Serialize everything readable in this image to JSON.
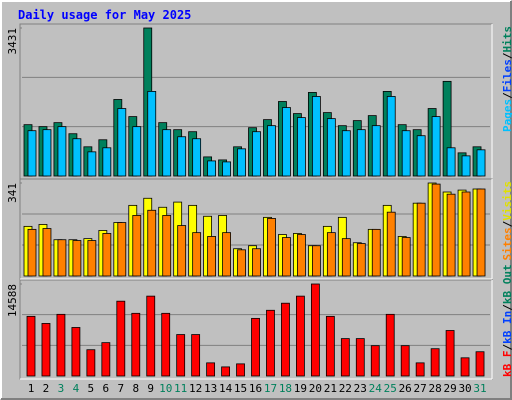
{
  "title": "Daily usage for May 2025",
  "categories": [
    "1",
    "2",
    "3",
    "4",
    "5",
    "6",
    "7",
    "8",
    "9",
    "10",
    "11",
    "12",
    "13",
    "14",
    "15",
    "16",
    "17",
    "18",
    "19",
    "20",
    "21",
    "22",
    "23",
    "24",
    "25",
    "26",
    "27",
    "28",
    "29",
    "30",
    "31"
  ],
  "category_colors": [
    "#000000",
    "#000000",
    "#00805c",
    "#00805c",
    "#000000",
    "#000000",
    "#000000",
    "#000000",
    "#000000",
    "#00805c",
    "#00805c",
    "#000000",
    "#000000",
    "#000000",
    "#000000",
    "#000000",
    "#00805c",
    "#00805c",
    "#000000",
    "#000000",
    "#000000",
    "#000000",
    "#000000",
    "#00805c",
    "#00805c",
    "#000000",
    "#000000",
    "#000000",
    "#000000",
    "#000000",
    "#00805c"
  ],
  "chart_data": [
    {
      "type": "bar",
      "ylim": [
        0,
        3431
      ],
      "yticks": [
        3431
      ],
      "legend_separator": "/",
      "legend": [
        {
          "text": "Pages",
          "color": "#00c0ff"
        },
        {
          "text": "Files",
          "color": "#0040ff"
        },
        {
          "text": "Hits",
          "color": "#00805c"
        }
      ],
      "series": [
        {
          "name": "Hits",
          "color": "#00805c",
          "values": [
            1190,
            1144,
            1237,
            980,
            677,
            840,
            1774,
            1377,
            3431,
            1237,
            1074,
            1027,
            443,
            373,
            677,
            1120,
            1307,
            1727,
            1447,
            1937,
            1470,
            1167,
            1284,
            1400,
            1961,
            1190,
            1074,
            1564,
            2194,
            537,
            677
          ]
        },
        {
          "name": "Pages",
          "color": "#00c0ff",
          "values": [
            1050,
            1074,
            1144,
            864,
            560,
            654,
            1564,
            1144,
            1961,
            1074,
            910,
            864,
            350,
            327,
            630,
            1027,
            1167,
            1587,
            1354,
            1844,
            1330,
            1050,
            1074,
            1167,
            1844,
            1050,
            934,
            1377,
            654,
            467,
            607
          ]
        }
      ]
    },
    {
      "type": "bar",
      "ylim": [
        0,
        341
      ],
      "yticks": [
        341
      ],
      "legend_separator": "/",
      "legend": [
        {
          "text": "Sites",
          "color": "#ff8000"
        },
        {
          "text": "Visits",
          "color": "#e0e000"
        }
      ],
      "series": [
        {
          "name": "Visits",
          "color": "#ffff00",
          "values": [
            182,
            189,
            133,
            133,
            137,
            167,
            196,
            259,
            285,
            252,
            271,
            259,
            219,
            222,
            100,
            111,
            215,
            152,
            156,
            111,
            182,
            215,
            122,
            171,
            259,
            145,
            267,
            341,
            308,
            315,
            319
          ]
        },
        {
          "name": "Sites",
          "color": "#ff8000",
          "values": [
            171,
            174,
            133,
            130,
            130,
            156,
            196,
            222,
            241,
            222,
            185,
            159,
            145,
            159,
            96,
            100,
            211,
            141,
            152,
            111,
            159,
            137,
            119,
            171,
            234,
            141,
            267,
            337,
            300,
            308,
            319
          ]
        }
      ]
    },
    {
      "type": "bar",
      "ylim": [
        0,
        14588
      ],
      "yticks": [
        14588
      ],
      "legend_separator": "/",
      "legend": [
        {
          "text": "kB F",
          "color": "#ff0000"
        },
        {
          "text": "kB In",
          "color": "#0040ff"
        },
        {
          "text": "kB Out",
          "color": "#00805c"
        }
      ],
      "series": [
        {
          "name": "kB F",
          "color": "#ff0000",
          "values": [
            9458,
            8336,
            9778,
            7694,
            4168,
            5290,
            11862,
            9939,
            12664,
            9939,
            6572,
            6572,
            2084,
            1443,
            1924,
            9137,
            10420,
            11542,
            12664,
            14588,
            9458,
            5931,
            5931,
            4809,
            9778,
            4809,
            2084,
            4328,
            7214,
            2885,
            3847
          ]
        }
      ]
    }
  ]
}
